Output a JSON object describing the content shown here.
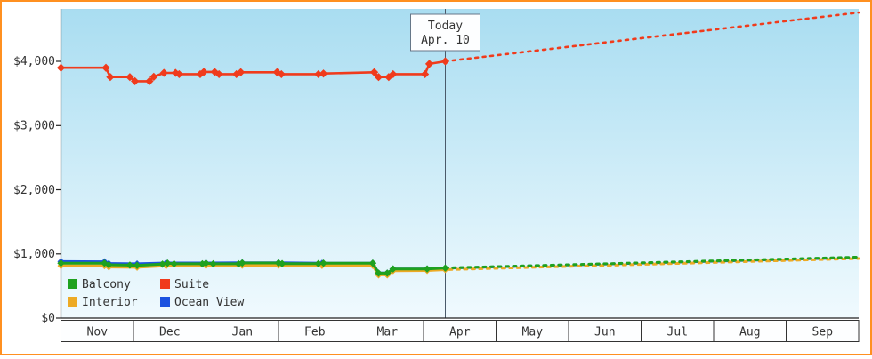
{
  "colors": {
    "frame_border": "#ff9020",
    "plot_bg_top": "#a9ddf1",
    "plot_bg_bottom": "#f0fafe",
    "axis": "#222222",
    "today_line": "#4a5a6a",
    "month_box_fill": "#fdfeff",
    "month_box_border": "#333333"
  },
  "chart_data": {
    "type": "line",
    "title": "",
    "x_axis": {
      "tick_labels": [
        "Nov",
        "Dec",
        "Jan",
        "Feb",
        "Mar",
        "Apr",
        "May",
        "Jun",
        "Jul",
        "Aug",
        "Sep"
      ]
    },
    "y_axis": {
      "tick_labels": [
        "$0",
        "$1,000",
        "$2,000",
        "$3,000",
        "$4,000"
      ],
      "tick_values": [
        0,
        1000,
        2000,
        3000,
        4000
      ],
      "range": [
        0,
        4800
      ]
    },
    "today_marker": {
      "line1": "Today",
      "line2": "Apr. 10",
      "x_month": 5.3
    },
    "legend": {
      "entries": [
        {
          "label": "Balcony",
          "color": "#1fa11f"
        },
        {
          "label": "Suite",
          "color": "#f03b1c"
        },
        {
          "label": "Interior",
          "color": "#edaa24"
        },
        {
          "label": "Ocean View",
          "color": "#1c52e0"
        }
      ]
    },
    "series": [
      {
        "id": "ocean-view",
        "name": "Ocean View",
        "color": "#1c52e0",
        "width": 3,
        "marker_size": 4,
        "solid": [
          [
            0,
            880
          ],
          [
            0.6,
            878
          ],
          [
            0.66,
            850
          ],
          [
            1.05,
            845
          ],
          [
            1.45,
            858
          ],
          [
            2.0,
            858
          ],
          [
            2.5,
            862
          ],
          [
            3.0,
            862
          ],
          [
            3.6,
            855
          ],
          [
            4.3,
            856
          ],
          [
            4.38,
            702
          ],
          [
            4.5,
            702
          ],
          [
            4.58,
            766
          ],
          [
            5.05,
            766
          ],
          [
            5.3,
            778
          ]
        ],
        "dotted": [
          [
            5.3,
            778
          ],
          [
            11,
            944
          ]
        ]
      },
      {
        "id": "interior",
        "name": "Interior",
        "color": "#edaa24",
        "width": 3,
        "marker_size": 4,
        "dash_offset": 4,
        "solid": [
          [
            0,
            815
          ],
          [
            0.6,
            815
          ],
          [
            0.66,
            795
          ],
          [
            1.05,
            790
          ],
          [
            1.45,
            815
          ],
          [
            2.0,
            818
          ],
          [
            2.5,
            822
          ],
          [
            3.0,
            822
          ],
          [
            3.6,
            818
          ],
          [
            4.3,
            820
          ],
          [
            4.38,
            672
          ],
          [
            4.5,
            672
          ],
          [
            4.58,
            738
          ],
          [
            5.05,
            740
          ],
          [
            5.3,
            755
          ]
        ],
        "dotted": [
          [
            5.3,
            755
          ],
          [
            11,
            928
          ]
        ]
      },
      {
        "id": "balcony",
        "name": "Balcony",
        "color": "#1fa11f",
        "width": 3,
        "marker_size": 4.2,
        "solid": [
          [
            0,
            855
          ],
          [
            0.6,
            855
          ],
          [
            0.66,
            830
          ],
          [
            0.95,
            825
          ],
          [
            1.05,
            820
          ],
          [
            1.4,
            840
          ],
          [
            1.47,
            855
          ],
          [
            1.56,
            845
          ],
          [
            1.95,
            845
          ],
          [
            2.0,
            855
          ],
          [
            2.1,
            845
          ],
          [
            2.45,
            845
          ],
          [
            2.5,
            858
          ],
          [
            3.0,
            858
          ],
          [
            3.05,
            848
          ],
          [
            3.55,
            848
          ],
          [
            3.62,
            855
          ],
          [
            4.3,
            855
          ],
          [
            4.38,
            700
          ],
          [
            4.5,
            700
          ],
          [
            4.58,
            765
          ],
          [
            5.05,
            765
          ],
          [
            5.3,
            780
          ]
        ],
        "dotted": [
          [
            5.3,
            780
          ],
          [
            11,
            950
          ]
        ]
      },
      {
        "id": "suite",
        "name": "Suite",
        "color": "#f03b1c",
        "width": 2.6,
        "marker_size": 4.6,
        "solid": [
          [
            0,
            3900
          ],
          [
            0.62,
            3900
          ],
          [
            0.68,
            3755
          ],
          [
            0.95,
            3755
          ],
          [
            1.02,
            3690
          ],
          [
            1.22,
            3690
          ],
          [
            1.28,
            3760
          ],
          [
            1.42,
            3820
          ],
          [
            1.58,
            3820
          ],
          [
            1.63,
            3800
          ],
          [
            1.92,
            3800
          ],
          [
            1.97,
            3835
          ],
          [
            2.12,
            3835
          ],
          [
            2.18,
            3800
          ],
          [
            2.42,
            3800
          ],
          [
            2.48,
            3830
          ],
          [
            2.98,
            3830
          ],
          [
            3.04,
            3800
          ],
          [
            3.55,
            3800
          ],
          [
            3.62,
            3810
          ],
          [
            4.32,
            3830
          ],
          [
            4.38,
            3755
          ],
          [
            4.52,
            3755
          ],
          [
            4.58,
            3800
          ],
          [
            5.02,
            3800
          ],
          [
            5.08,
            3960
          ],
          [
            5.3,
            4000
          ]
        ],
        "dotted": [
          [
            5.3,
            4000
          ],
          [
            11,
            4760
          ]
        ]
      }
    ]
  }
}
